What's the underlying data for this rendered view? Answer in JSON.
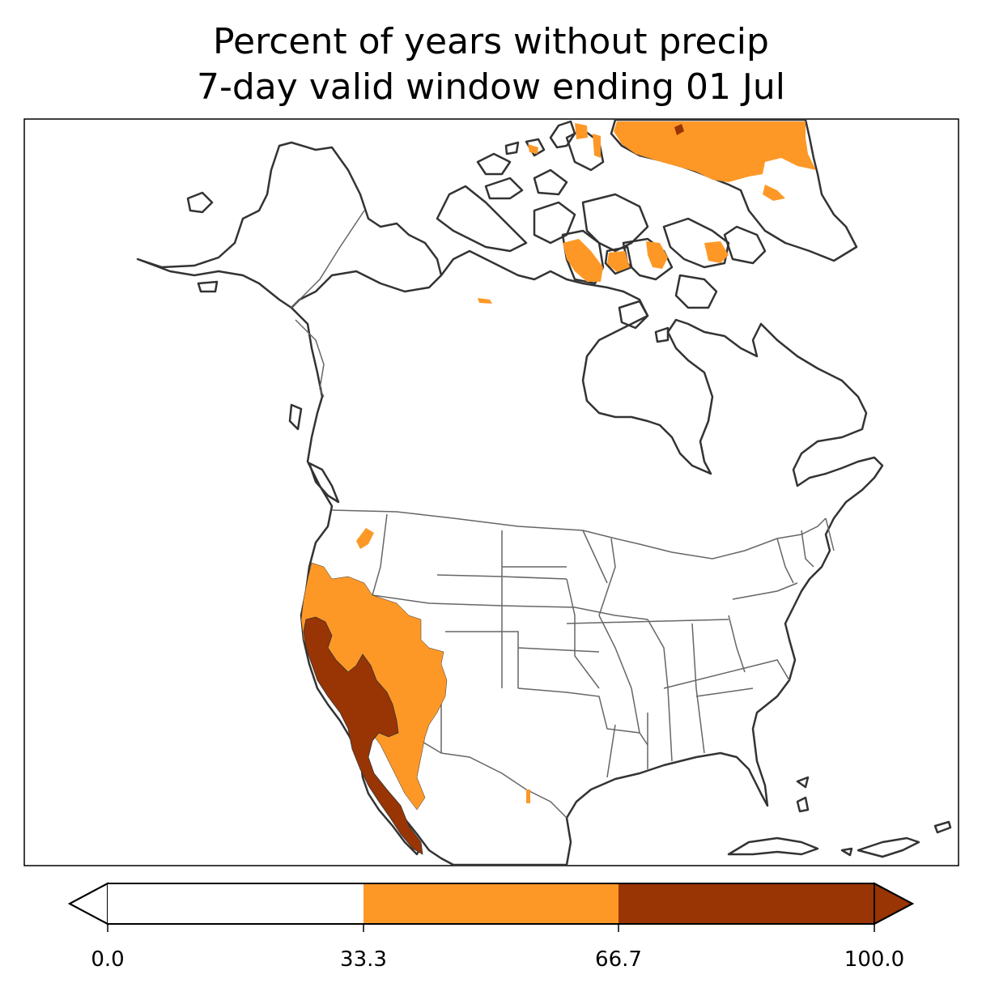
{
  "title": {
    "line1": "Percent of years without precip",
    "line2": "7-day valid window ending 01 Jul"
  },
  "colorbar": {
    "ticks": [
      "0.0",
      "33.3",
      "66.7",
      "100.0"
    ],
    "bins": [
      {
        "range": [
          0.0,
          33.3
        ],
        "color": "#ffffff"
      },
      {
        "range": [
          33.3,
          66.7
        ],
        "color": "#fd9827"
      },
      {
        "range": [
          66.7,
          100.0
        ],
        "color": "#993404"
      }
    ],
    "extend": "both"
  },
  "colors": {
    "low": "#ffffff",
    "mid": "#fd9827",
    "high": "#993404",
    "coastline": "#333333",
    "borders": "#666666"
  }
}
